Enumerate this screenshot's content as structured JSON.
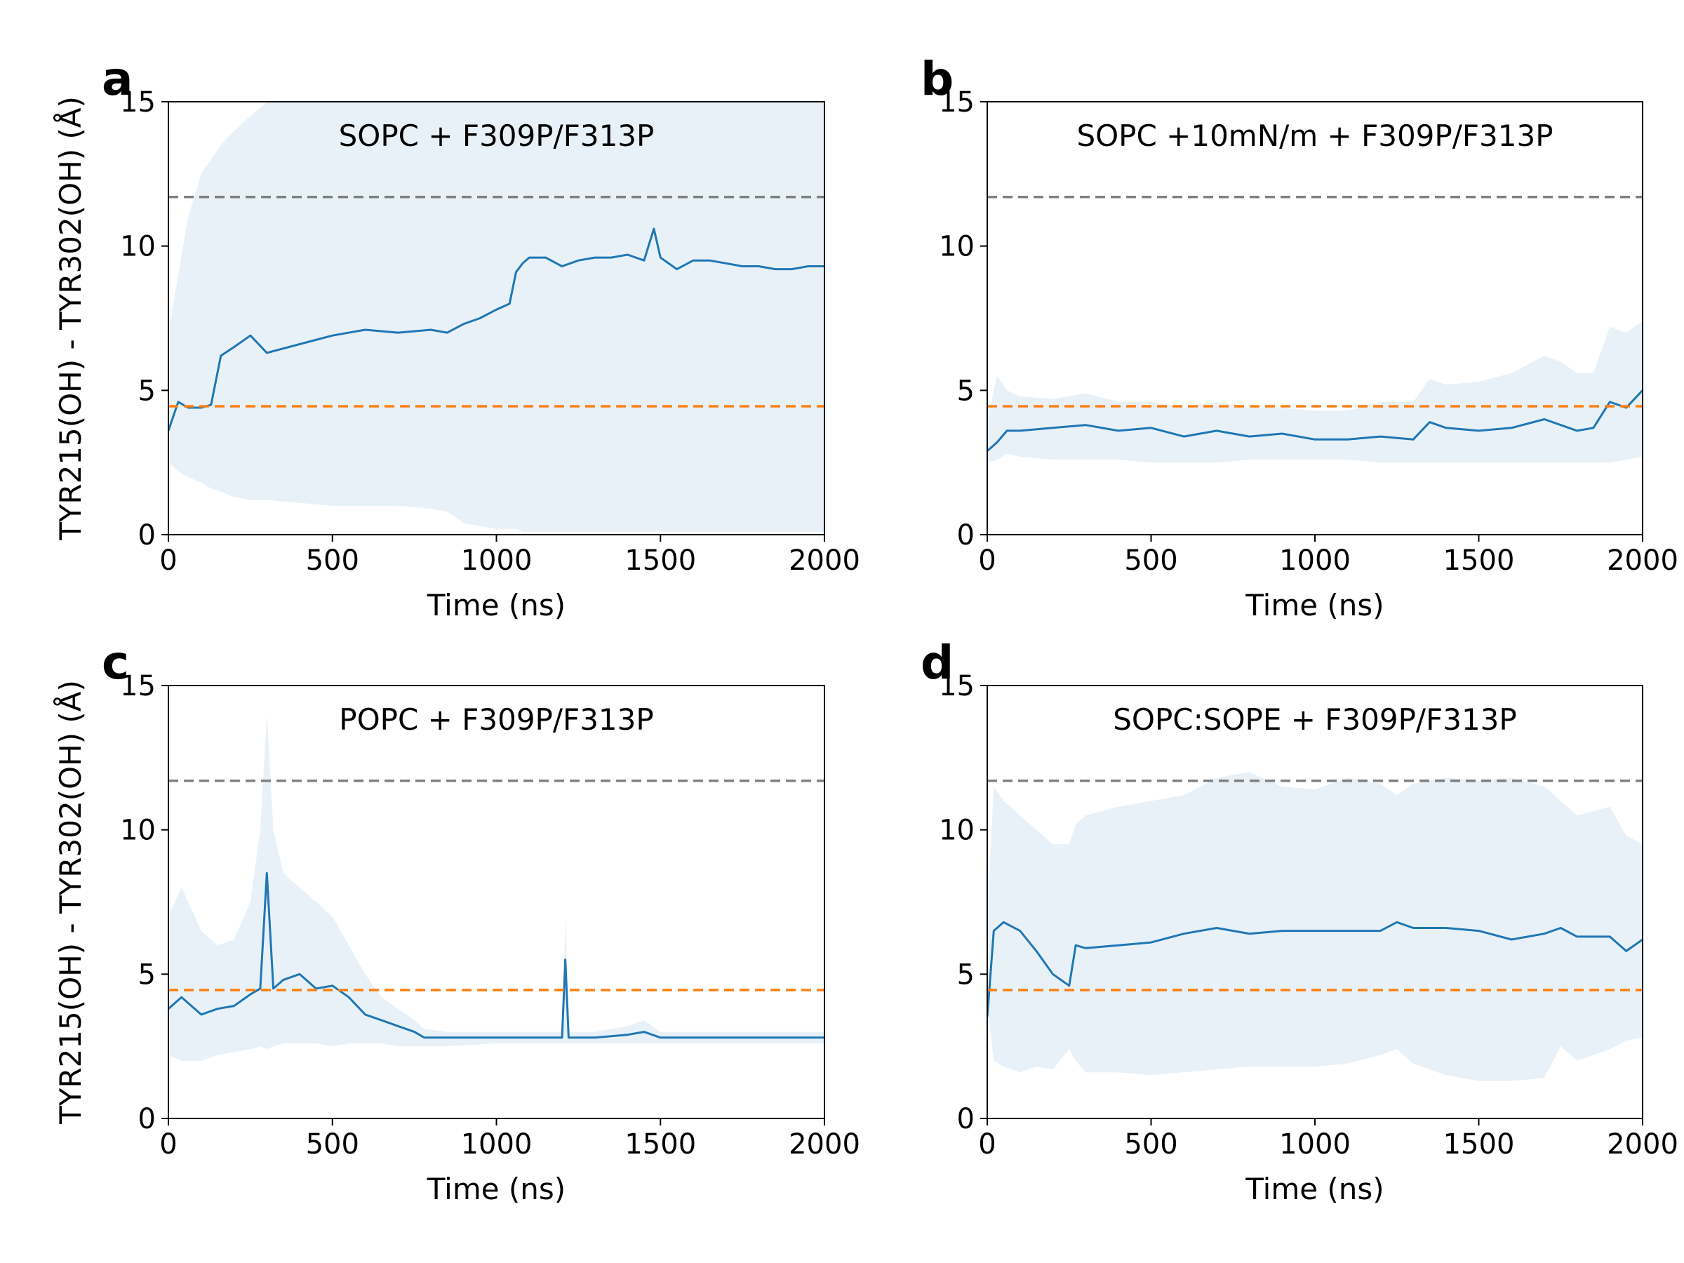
{
  "chart_data": [
    {
      "panel_label": "a",
      "type": "line",
      "title": "SOPC + F309P/F313P",
      "xlabel": "Time (ns)",
      "ylabel": "TYR215(OH) - TYR302(OH) (Å)",
      "xlim": [
        0,
        2000
      ],
      "ylim": [
        0,
        15
      ],
      "xticks": [
        "0",
        "500",
        "1000",
        "1500",
        "2000"
      ],
      "yticks": [
        "0",
        "5",
        "10",
        "15"
      ],
      "grid": false,
      "reference_lines": [
        {
          "y": 11.7,
          "color": "#7f7f7f",
          "style": "dashed"
        },
        {
          "y": 4.45,
          "color": "#ff7f0e",
          "style": "dashed"
        }
      ],
      "series": [
        {
          "x": [
            0,
            30,
            60,
            100,
            130,
            160,
            200,
            250,
            300,
            400,
            500,
            600,
            700,
            800,
            850,
            900,
            950,
            1000,
            1040,
            1060,
            1080,
            1100,
            1150,
            1200,
            1250,
            1300,
            1350,
            1400,
            1450,
            1480,
            1500,
            1550,
            1600,
            1650,
            1700,
            1750,
            1800,
            1850,
            1900,
            1950,
            2000
          ],
          "y": [
            3.6,
            4.6,
            4.4,
            4.4,
            4.5,
            6.2,
            6.5,
            6.9,
            6.3,
            6.6,
            6.9,
            7.1,
            7.0,
            7.1,
            7.0,
            7.3,
            7.5,
            7.8,
            8.0,
            9.1,
            9.4,
            9.6,
            9.6,
            9.3,
            9.5,
            9.6,
            9.6,
            9.7,
            9.5,
            10.6,
            9.6,
            9.2,
            9.5,
            9.5,
            9.4,
            9.3,
            9.3,
            9.2,
            9.2,
            9.3,
            9.3
          ],
          "color": "#1f77b4",
          "band_lower": [
            2.5,
            2.2,
            2.0,
            1.8,
            1.6,
            1.5,
            1.3,
            1.2,
            1.2,
            1.1,
            1.0,
            1.0,
            1.0,
            0.9,
            0.8,
            0.4,
            0.3,
            0.2,
            0.2,
            0.2,
            0.1,
            0.1,
            0.1,
            0.1,
            0.1,
            0.1,
            0.1,
            0.1,
            0.1,
            0.1,
            0.1,
            0.1,
            0.1,
            0.1,
            0.1,
            0.1,
            0.1,
            0.1,
            0.1,
            0.1,
            0.1
          ],
          "band_upper": [
            7.0,
            9.0,
            11.0,
            12.5,
            13.0,
            13.5,
            14.0,
            14.5,
            15.0,
            15.0,
            15.0,
            15.0,
            15.0,
            15.0,
            15.0,
            15.0,
            15.0,
            15.0,
            15.0,
            15.0,
            15.0,
            15.0,
            15.0,
            15.0,
            15.0,
            15.0,
            15.0,
            15.0,
            15.0,
            15.0,
            15.0,
            15.0,
            15.0,
            15.0,
            15.0,
            15.0,
            15.0,
            15.0,
            15.0,
            15.0,
            15.0
          ]
        }
      ]
    },
    {
      "panel_label": "b",
      "type": "line",
      "title": "SOPC +10mN/m  + F309P/F313P",
      "xlabel": "Time (ns)",
      "ylabel": "",
      "xlim": [
        0,
        2000
      ],
      "ylim": [
        0,
        15
      ],
      "xticks": [
        "0",
        "500",
        "1000",
        "1500",
        "2000"
      ],
      "yticks": [
        "0",
        "5",
        "10",
        "15"
      ],
      "grid": false,
      "reference_lines": [
        {
          "y": 11.7,
          "color": "#7f7f7f",
          "style": "dashed"
        },
        {
          "y": 4.45,
          "color": "#ff7f0e",
          "style": "dashed"
        }
      ],
      "series": [
        {
          "x": [
            0,
            30,
            60,
            100,
            200,
            300,
            400,
            500,
            600,
            700,
            800,
            900,
            1000,
            1100,
            1200,
            1300,
            1350,
            1400,
            1500,
            1600,
            1700,
            1750,
            1800,
            1850,
            1900,
            1950,
            2000
          ],
          "y": [
            2.9,
            3.2,
            3.6,
            3.6,
            3.7,
            3.8,
            3.6,
            3.7,
            3.4,
            3.6,
            3.4,
            3.5,
            3.3,
            3.3,
            3.4,
            3.3,
            3.9,
            3.7,
            3.6,
            3.7,
            4.0,
            3.8,
            3.6,
            3.7,
            4.6,
            4.4,
            5.0
          ],
          "color": "#1f77b4",
          "band_lower": [
            2.5,
            2.6,
            2.8,
            2.7,
            2.6,
            2.6,
            2.6,
            2.5,
            2.5,
            2.5,
            2.6,
            2.6,
            2.6,
            2.6,
            2.5,
            2.5,
            2.5,
            2.5,
            2.5,
            2.5,
            2.5,
            2.5,
            2.5,
            2.5,
            2.5,
            2.6,
            2.7
          ],
          "band_upper": [
            4.0,
            5.5,
            5.0,
            4.8,
            4.7,
            4.9,
            4.6,
            4.6,
            4.4,
            4.6,
            4.4,
            4.4,
            4.3,
            4.3,
            4.6,
            4.6,
            5.4,
            5.2,
            5.3,
            5.6,
            6.2,
            6.0,
            5.6,
            5.6,
            7.2,
            7.0,
            7.4
          ]
        }
      ]
    },
    {
      "panel_label": "c",
      "type": "line",
      "title": "POPC + F309P/F313P",
      "xlabel": "Time (ns)",
      "ylabel": "TYR215(OH) - TYR302(OH) (Å)",
      "xlim": [
        0,
        2000
      ],
      "ylim": [
        0,
        15
      ],
      "xticks": [
        "0",
        "500",
        "1000",
        "1500",
        "2000"
      ],
      "yticks": [
        "0",
        "5",
        "10",
        "15"
      ],
      "grid": false,
      "reference_lines": [
        {
          "y": 11.7,
          "color": "#7f7f7f",
          "style": "dashed"
        },
        {
          "y": 4.45,
          "color": "#ff7f0e",
          "style": "dashed"
        }
      ],
      "series": [
        {
          "x": [
            0,
            40,
            100,
            150,
            200,
            250,
            280,
            300,
            320,
            350,
            400,
            450,
            500,
            550,
            600,
            650,
            700,
            750,
            780,
            850,
            1000,
            1100,
            1200,
            1210,
            1220,
            1300,
            1400,
            1450,
            1500,
            1600,
            1700,
            1800,
            1900,
            2000
          ],
          "y": [
            3.8,
            4.2,
            3.6,
            3.8,
            3.9,
            4.3,
            4.5,
            8.5,
            4.5,
            4.8,
            5.0,
            4.5,
            4.6,
            4.2,
            3.6,
            3.4,
            3.2,
            3.0,
            2.8,
            2.8,
            2.8,
            2.8,
            2.8,
            5.5,
            2.8,
            2.8,
            2.9,
            3.0,
            2.8,
            2.8,
            2.8,
            2.8,
            2.8,
            2.8
          ],
          "color": "#1f77b4",
          "band_lower": [
            2.2,
            2.0,
            2.0,
            2.2,
            2.3,
            2.4,
            2.5,
            2.4,
            2.5,
            2.6,
            2.6,
            2.6,
            2.5,
            2.6,
            2.6,
            2.6,
            2.5,
            2.5,
            2.5,
            2.5,
            2.6,
            2.6,
            2.6,
            2.6,
            2.6,
            2.6,
            2.6,
            2.6,
            2.6,
            2.6,
            2.6,
            2.6,
            2.6,
            2.6
          ],
          "band_upper": [
            7.0,
            8.0,
            6.5,
            6.0,
            6.2,
            7.5,
            10.0,
            14.0,
            10.0,
            8.5,
            8.0,
            7.5,
            7.0,
            6.0,
            5.0,
            4.2,
            3.8,
            3.4,
            3.1,
            3.0,
            3.0,
            3.0,
            3.0,
            7.0,
            3.0,
            3.0,
            3.2,
            3.4,
            3.0,
            3.0,
            3.0,
            3.0,
            3.0,
            3.0
          ]
        }
      ]
    },
    {
      "panel_label": "d",
      "type": "line",
      "title": "SOPC:SOPE + F309P/F313P",
      "xlabel": "Time (ns)",
      "ylabel": "",
      "xlim": [
        0,
        2000
      ],
      "ylim": [
        0,
        15
      ],
      "xticks": [
        "0",
        "500",
        "1000",
        "1500",
        "2000"
      ],
      "yticks": [
        "0",
        "5",
        "10",
        "15"
      ],
      "grid": false,
      "reference_lines": [
        {
          "y": 11.7,
          "color": "#7f7f7f",
          "style": "dashed"
        },
        {
          "y": 4.45,
          "color": "#ff7f0e",
          "style": "dashed"
        }
      ],
      "series": [
        {
          "x": [
            0,
            20,
            50,
            100,
            150,
            200,
            250,
            270,
            300,
            400,
            500,
            600,
            700,
            800,
            900,
            1000,
            1100,
            1200,
            1250,
            1300,
            1400,
            1500,
            1600,
            1700,
            1750,
            1800,
            1900,
            1950,
            2000
          ],
          "y": [
            3.5,
            6.5,
            6.8,
            6.5,
            5.8,
            5.0,
            4.6,
            6.0,
            5.9,
            6.0,
            6.1,
            6.4,
            6.6,
            6.4,
            6.5,
            6.5,
            6.5,
            6.5,
            6.8,
            6.6,
            6.6,
            6.5,
            6.2,
            6.4,
            6.6,
            6.3,
            6.3,
            5.8,
            6.2
          ],
          "color": "#1f77b4",
          "band_lower": [
            4.0,
            2.0,
            1.8,
            1.6,
            1.8,
            1.7,
            2.4,
            2.0,
            1.6,
            1.6,
            1.5,
            1.6,
            1.7,
            1.8,
            1.8,
            1.8,
            1.9,
            2.2,
            2.4,
            1.9,
            1.5,
            1.3,
            1.3,
            1.4,
            2.5,
            2.0,
            2.4,
            2.7,
            2.8
          ],
          "band_upper": [
            7.0,
            11.5,
            11.0,
            10.5,
            10.0,
            9.5,
            9.5,
            10.2,
            10.5,
            10.8,
            11.0,
            11.2,
            11.8,
            12.0,
            11.5,
            11.4,
            11.8,
            11.6,
            11.2,
            11.6,
            11.8,
            11.7,
            11.8,
            11.5,
            11.0,
            10.5,
            10.8,
            9.8,
            9.5
          ]
        }
      ]
    }
  ]
}
